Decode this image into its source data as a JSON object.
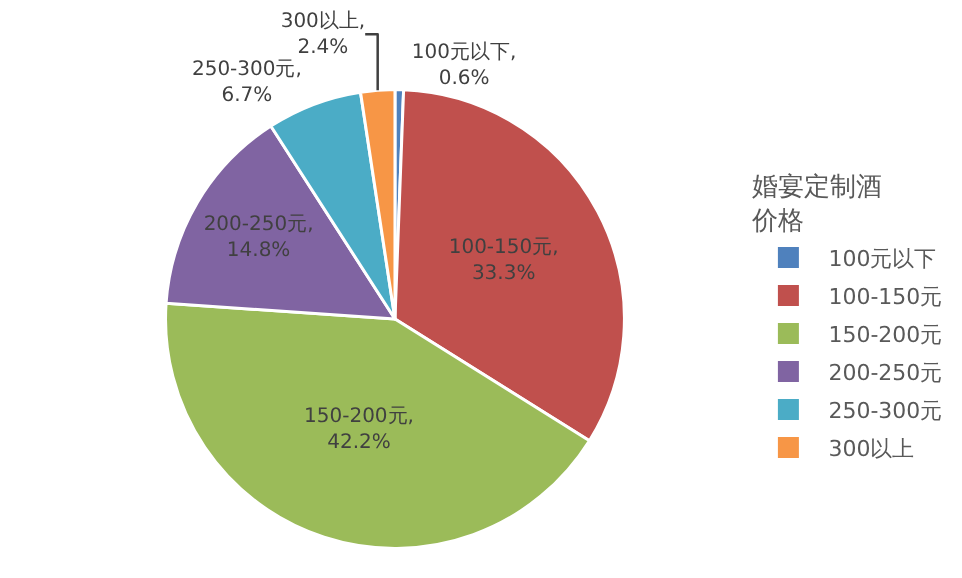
{
  "chart_data": {
    "type": "pie",
    "legend_title": "婚宴定制酒价格",
    "legend": "right",
    "categories": [
      "100元以下",
      "100-150元",
      "150-200元",
      "200-250元",
      "250-300元",
      "300以上"
    ],
    "values": [
      0.6,
      33.3,
      42.2,
      14.8,
      6.7,
      2.4
    ],
    "colors": [
      "#4f81bd",
      "#c0504d",
      "#9bbb59",
      "#8064a2",
      "#4bacc6",
      "#f79646"
    ],
    "value_labels": [
      "100元以下, 0.6%",
      "100-150元, 33.3%",
      "150-200元, 42.2%",
      "200-250元, 14.8%",
      "250-300元, 6.7%",
      "300以上, 2.4%"
    ]
  }
}
